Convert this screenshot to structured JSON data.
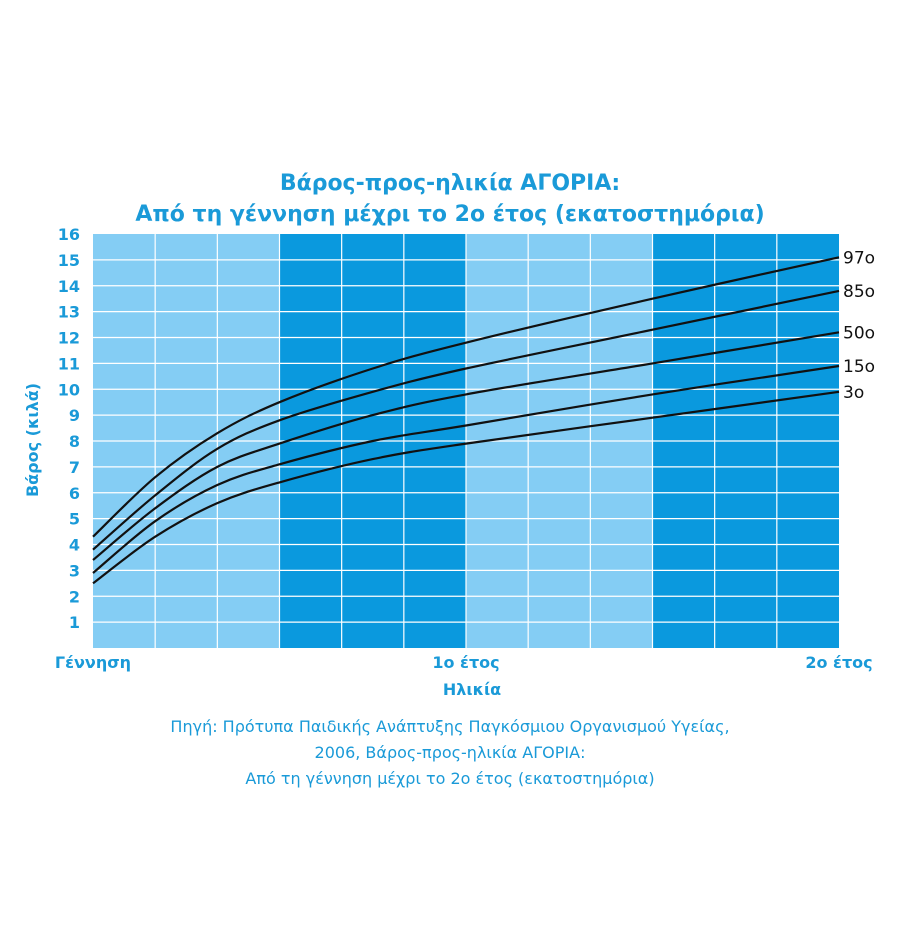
{
  "chart_data": {
    "type": "line",
    "title": "Βάρος-προς-ηλικία ΑΓΟΡΙΑ:",
    "subtitle": "Από τη γέννηση μέχρι το 2ο έτος (εκατοστημόρια)",
    "xlabel": "Ηλικία",
    "ylabel": "Βάρος (κιλά)",
    "xlim": [
      0,
      24
    ],
    "ylim": [
      0,
      16
    ],
    "yticks": [
      "1",
      "2",
      "3",
      "4",
      "5",
      "6",
      "7",
      "8",
      "9",
      "10",
      "11",
      "12",
      "13",
      "14",
      "15",
      "16"
    ],
    "xtick_labels": [
      {
        "x": 0,
        "label": "Γέννηση"
      },
      {
        "x": 12,
        "label": "1ο έτος"
      },
      {
        "x": 24,
        "label": "2ο έτος"
      }
    ],
    "grid": true,
    "x": [
      0,
      2,
      4,
      6,
      9,
      12,
      18,
      24
    ],
    "series": [
      {
        "name": "97ο",
        "values": [
          4.3,
          6.6,
          8.3,
          9.5,
          10.8,
          11.8,
          13.5,
          15.1
        ]
      },
      {
        "name": "85ο",
        "values": [
          3.8,
          5.9,
          7.7,
          8.8,
          9.9,
          10.8,
          12.3,
          13.8
        ]
      },
      {
        "name": "50ο",
        "values": [
          3.4,
          5.4,
          7.0,
          7.9,
          9.0,
          9.8,
          11.0,
          12.2
        ]
      },
      {
        "name": "15ο",
        "values": [
          2.9,
          4.9,
          6.3,
          7.1,
          8.0,
          8.6,
          9.8,
          10.9
        ]
      },
      {
        "name": "3ο",
        "values": [
          2.5,
          4.3,
          5.6,
          6.4,
          7.3,
          7.9,
          8.9,
          9.9
        ]
      }
    ]
  },
  "source": {
    "line1": "Πηγή: Πρότυπα Παιδικής Ανάπτυξης Παγκόσμιου Οργανισμού Υγείας,",
    "line2": "2006, Βάρος-προς-ηλικία ΑΓΟΡΙΑ:",
    "line3": "Από τη γέννηση μέχρι το 2ο έτος (εκατοστημόρια)"
  },
  "colors": {
    "light_band": "#84cdf4",
    "dark_band": "#0a99de",
    "grid": "#ffffff",
    "curve": "#111111",
    "text": "#1a9ad8"
  }
}
